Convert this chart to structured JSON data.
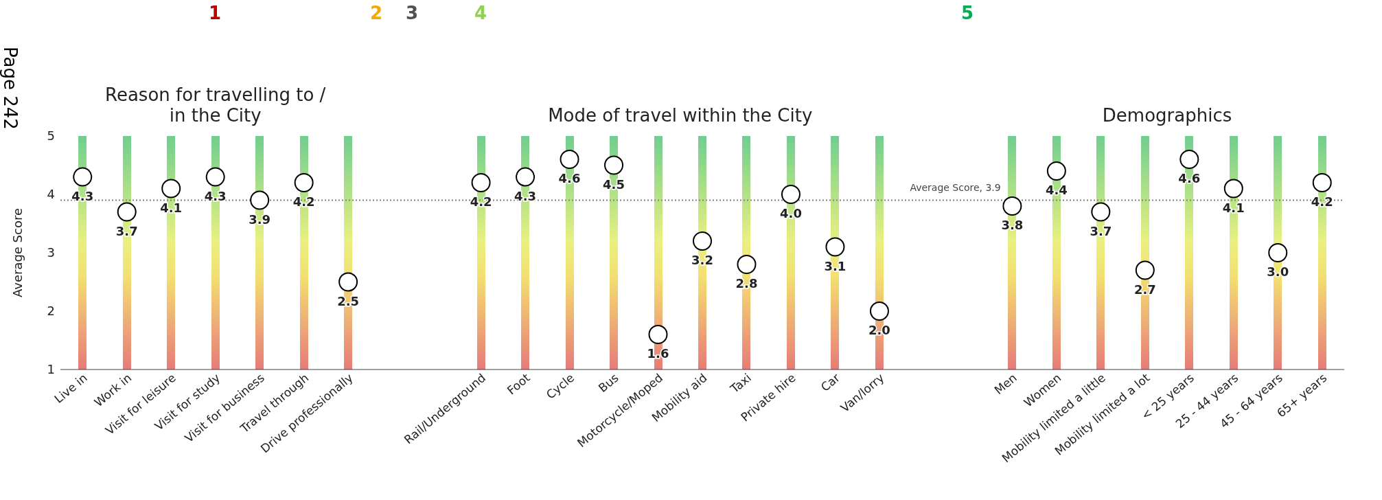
{
  "chart_data": {
    "type": "scatter",
    "ylabel": "Average Score",
    "categories": [
      "Live in",
      "Work in",
      "Visit for leisure",
      "Visit for study",
      "Visit for business",
      "Travel through",
      "Drive professionally",
      null,
      null,
      "Rail/Underground",
      "Foot",
      "Cycle",
      "Bus",
      "Motorcycle/Moped",
      "Mobility aid",
      "Taxi",
      "Private hire",
      "Car",
      "Van/lorry",
      null,
      null,
      "Men",
      "Women",
      "Mobility limited a little",
      "Mobility limited a lot",
      "< 25 years",
      "25 - 44 years",
      "45 - 64 years",
      "65+ years"
    ],
    "values": [
      4.3,
      3.7,
      4.1,
      4.3,
      3.9,
      4.2,
      2.5,
      null,
      null,
      4.2,
      4.3,
      4.6,
      4.5,
      1.6,
      3.2,
      2.8,
      4.0,
      3.1,
      2.0,
      null,
      null,
      3.8,
      4.4,
      3.7,
      2.7,
      4.6,
      4.1,
      3.0,
      4.2
    ],
    "color": "#ffffff",
    "marker": "circle",
    "value_labels": [
      "4.3",
      "3.7",
      "4.1",
      "4.3",
      "3.9",
      "4.2",
      "2.5",
      null,
      null,
      "4.2",
      "4.3",
      "4.6",
      "4.5",
      "1.6",
      "3.2",
      "2.8",
      "4.0",
      "3.1",
      "2.0",
      null,
      null,
      "3.8",
      "4.4",
      "3.7",
      "2.7",
      "4.6",
      "4.1",
      "3.0",
      "4.2"
    ],
    "ylim": [
      1,
      5
    ],
    "yticks": [
      1,
      2,
      3,
      4,
      5
    ],
    "grid": false,
    "legend": false,
    "ref_lines": [
      {
        "axis": "y",
        "value": 3.9,
        "label": "Average Score, 3.9",
        "color": "#808080",
        "line_style": "dotted"
      }
    ],
    "annotations": [
      "Reason for travelling to / in the City",
      "Mode of travel within the City",
      "Demographics",
      "Page 242",
      "1",
      "2",
      "3",
      "4",
      "5"
    ]
  }
}
